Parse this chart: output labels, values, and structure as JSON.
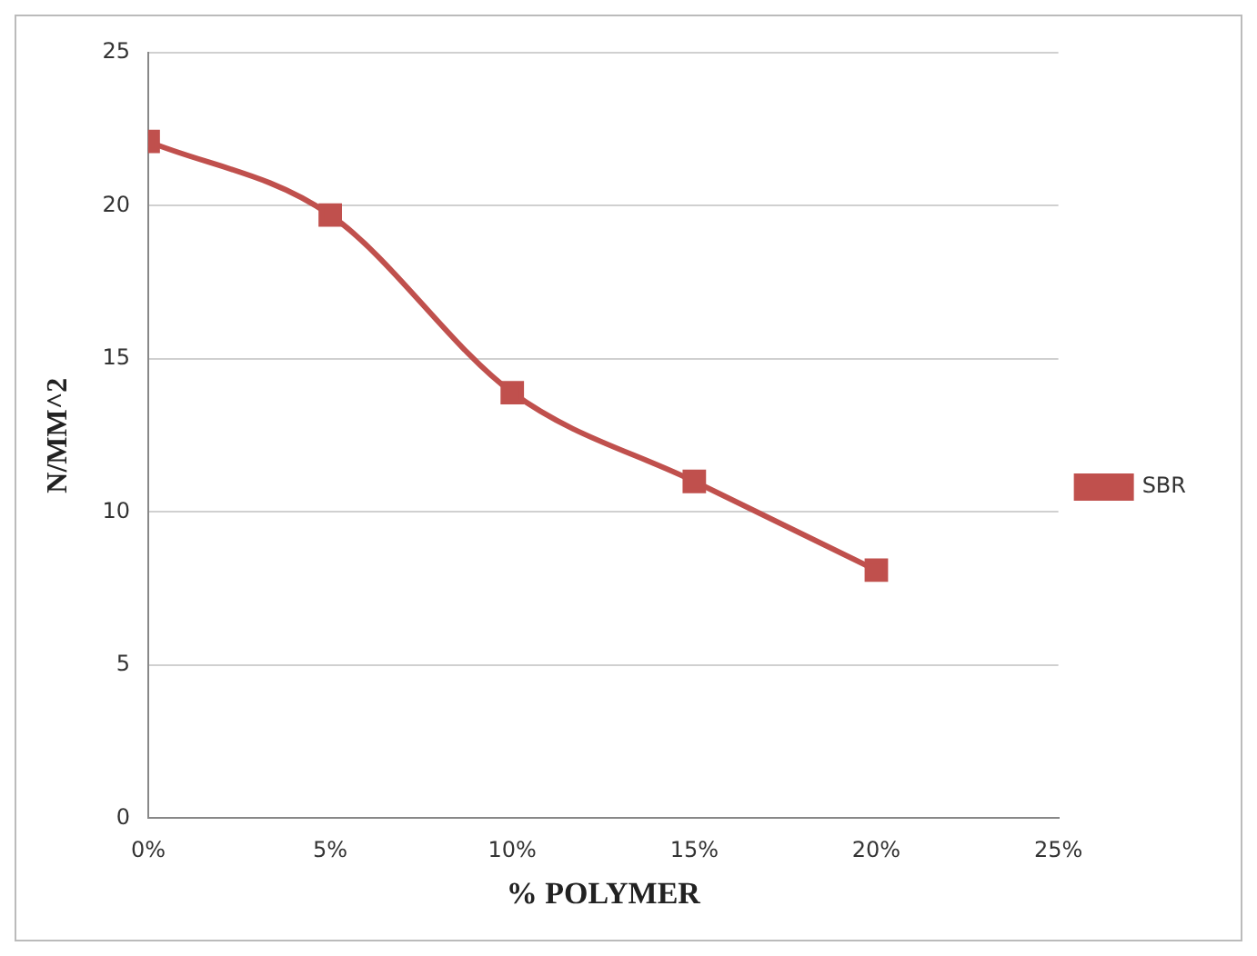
{
  "chart_data": {
    "type": "line",
    "xlabel": "% POLYMER",
    "ylabel": "N/MM^2",
    "x": [
      0,
      5,
      10,
      15,
      20
    ],
    "series": [
      {
        "name": "SBR",
        "color": "#c0504d",
        "values": [
          22.1,
          19.7,
          13.9,
          11.0,
          8.1
        ]
      }
    ],
    "xlim": [
      0,
      25
    ],
    "xticks": [
      {
        "value": 0,
        "label": "0%"
      },
      {
        "value": 5,
        "label": "5%"
      },
      {
        "value": 10,
        "label": "10%"
      },
      {
        "value": 15,
        "label": "15%"
      },
      {
        "value": 20,
        "label": "20%"
      },
      {
        "value": 25,
        "label": "25%"
      }
    ],
    "ylim": [
      0,
      25
    ],
    "yticks": [
      0,
      5,
      10,
      15,
      20,
      25
    ],
    "grid": "y",
    "legend": "right",
    "marker": "square",
    "line_style": "solid"
  }
}
